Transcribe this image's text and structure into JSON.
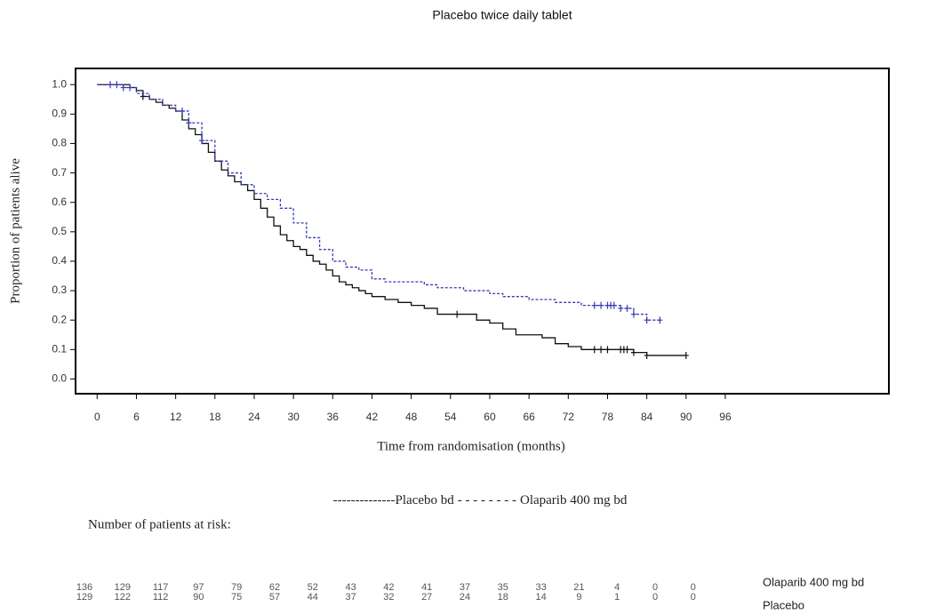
{
  "chart_data": {
    "type": "km",
    "title": "Placebo twice daily tablet",
    "xlabel": "Time from randomisation (months)",
    "ylabel": "Proportion of patients alive",
    "xlim": [
      -3.3,
      121
    ],
    "ylim": [
      -0.05,
      1.055
    ],
    "xticks": [
      0,
      6,
      12,
      18,
      24,
      30,
      36,
      42,
      48,
      54,
      60,
      66,
      72,
      78,
      84,
      90,
      96
    ],
    "yticks": [
      {
        "value": 0,
        "label": "0.0"
      },
      {
        "value": 0.1,
        "label": "0.1"
      },
      {
        "value": 0.2,
        "label": "0.2"
      },
      {
        "value": 0.3,
        "label": "0.3"
      },
      {
        "value": 0.4,
        "label": "0.4"
      },
      {
        "value": 0.5,
        "label": "0.5"
      },
      {
        "value": 0.6,
        "label": "0.6"
      },
      {
        "value": 0.7,
        "label": "0.7"
      },
      {
        "value": 0.8,
        "label": "0.8"
      },
      {
        "value": 0.9,
        "label": "0.9"
      },
      {
        "value": 1,
        "label": "1.0"
      }
    ],
    "legend_markers": [
      "--------------",
      "- - - - - - - -"
    ],
    "series": [
      {
        "name": "Placebo bd",
        "color": "#111111",
        "dashed": false,
        "x": [
          0,
          3,
          5,
          6,
          7,
          8,
          9,
          10,
          11,
          12,
          13,
          14,
          15,
          16,
          17,
          18,
          19,
          20,
          21,
          22,
          23,
          24,
          25,
          26,
          27,
          28,
          29,
          30,
          31,
          32,
          33,
          34,
          35,
          36,
          37,
          38,
          39,
          40,
          41,
          42,
          44,
          46,
          48,
          50,
          52,
          54,
          56,
          58,
          60,
          62,
          64,
          66,
          68,
          70,
          72,
          74,
          76,
          78,
          80,
          82,
          84,
          86,
          88,
          90
        ],
        "values": [
          1.0,
          1.0,
          0.99,
          0.98,
          0.96,
          0.95,
          0.94,
          0.93,
          0.92,
          0.91,
          0.88,
          0.85,
          0.83,
          0.8,
          0.77,
          0.74,
          0.71,
          0.69,
          0.67,
          0.66,
          0.64,
          0.61,
          0.58,
          0.55,
          0.52,
          0.49,
          0.47,
          0.45,
          0.44,
          0.42,
          0.4,
          0.39,
          0.37,
          0.35,
          0.33,
          0.32,
          0.31,
          0.3,
          0.29,
          0.28,
          0.27,
          0.26,
          0.25,
          0.24,
          0.22,
          0.22,
          0.22,
          0.2,
          0.19,
          0.17,
          0.15,
          0.15,
          0.14,
          0.12,
          0.11,
          0.1,
          0.1,
          0.1,
          0.1,
          0.09,
          0.08,
          0.08,
          0.08,
          0.08
        ],
        "censored": [
          7,
          55,
          76,
          77,
          78,
          80,
          80.5,
          81,
          82,
          84,
          90
        ]
      },
      {
        "name": "Olaparib 400 mg bd",
        "color": "#3a3ab8",
        "dashed": true,
        "x": [
          0,
          4,
          6,
          8,
          10,
          12,
          14,
          16,
          18,
          20,
          22,
          24,
          26,
          28,
          30,
          32,
          34,
          36,
          38,
          40,
          42,
          44,
          46,
          48,
          50,
          52,
          54,
          56,
          58,
          60,
          62,
          64,
          66,
          68,
          70,
          72,
          74,
          76,
          78,
          80,
          82,
          84,
          86
        ],
        "values": [
          1.0,
          0.99,
          0.97,
          0.95,
          0.93,
          0.91,
          0.87,
          0.81,
          0.74,
          0.7,
          0.66,
          0.63,
          0.61,
          0.58,
          0.53,
          0.48,
          0.44,
          0.4,
          0.38,
          0.37,
          0.34,
          0.33,
          0.33,
          0.33,
          0.32,
          0.31,
          0.31,
          0.3,
          0.3,
          0.29,
          0.28,
          0.28,
          0.27,
          0.27,
          0.26,
          0.26,
          0.25,
          0.25,
          0.25,
          0.24,
          0.22,
          0.2,
          0.2
        ],
        "censored": [
          2,
          3,
          4,
          5,
          13,
          14,
          16,
          76,
          77,
          78,
          78.5,
          79,
          80,
          81,
          82,
          84,
          86
        ]
      }
    ],
    "risk_table": {
      "title": "Number of patients at risk:",
      "rows": [
        {
          "label": "Olaparib 400 mg bd",
          "counts": [
            "136",
            "129",
            "117",
            "97",
            "79",
            "62",
            "52",
            "43",
            "42",
            "41",
            "37",
            "35",
            "33",
            "21",
            "4",
            "0",
            "0"
          ]
        },
        {
          "label": "Placebo",
          "counts": [
            "129",
            "122",
            "112",
            "90",
            "75",
            "57",
            "44",
            "37",
            "32",
            "27",
            "24",
            "18",
            "14",
            "9",
            "1",
            "0",
            "0"
          ]
        }
      ]
    }
  }
}
